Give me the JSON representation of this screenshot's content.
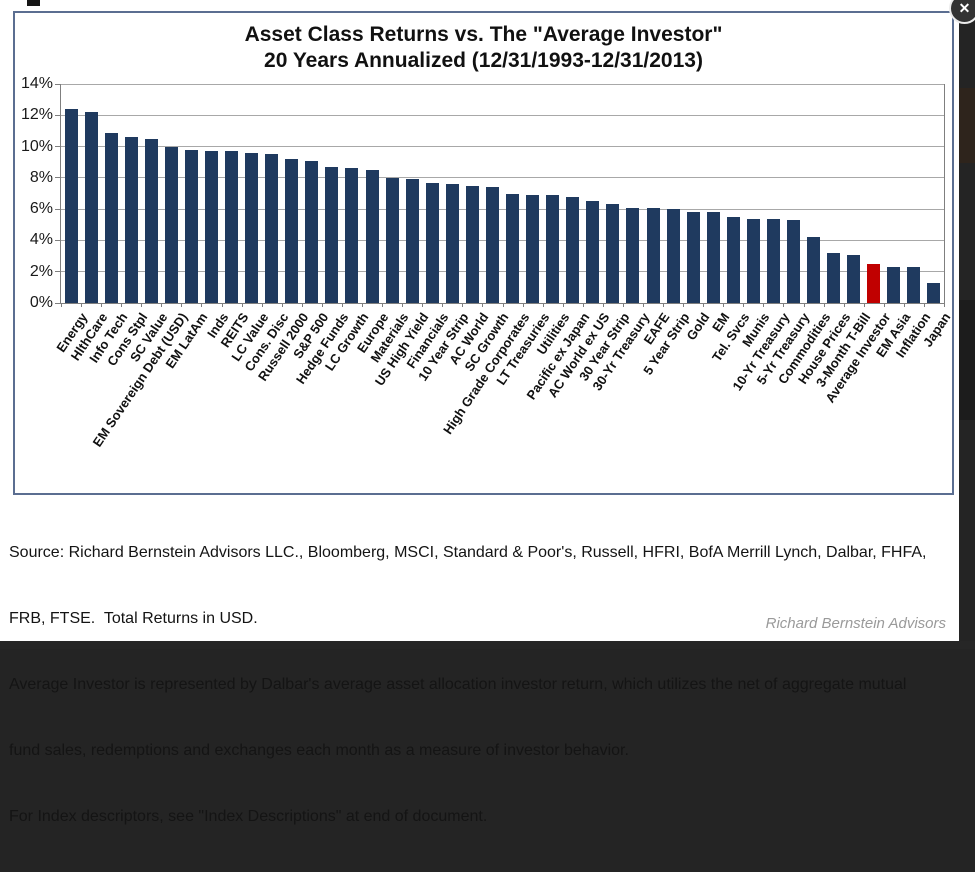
{
  "window": {
    "close_glyph": "✕",
    "credit": "Richard Bernstein Advisors"
  },
  "chart_data": {
    "type": "bar",
    "title_line1": "Asset Class Returns vs. The \"Average Investor\"",
    "title_line2": "20 Years Annualized (12/31/1993-12/31/2013)",
    "categories": [
      "Energy",
      "HlthCare",
      "Info Tech",
      "Cons Stpl",
      "SC Value",
      "EM Sovereign Debt (USD)",
      "EM LatAm",
      "Inds",
      "REITS",
      "LC Value",
      "Cons. Disc",
      "Russell 2000",
      "S&P 500",
      "Hedge Funds",
      "LC Growth",
      "Europe",
      "Materials",
      "US High Yield",
      "Financials",
      "10 Year Strip",
      "AC World",
      "SC Growth",
      "High Grade Corporates",
      "LT Treasuries",
      "Utilities",
      "Pacific ex Japan",
      "AC World ex US",
      "30 Year Strip",
      "30-Yr Treasury",
      "EAFE",
      "5 Year Strip",
      "Gold",
      "EM",
      "Tel. Svcs",
      "Munis",
      "10-Yr Treasury",
      "5-Yr Treasury",
      "Commodities",
      "House Prices",
      "3-Month T-Bill",
      "Average Investor",
      "EM Asia",
      "Inflation",
      "Japan"
    ],
    "values": [
      12.4,
      12.2,
      10.9,
      10.6,
      10.5,
      10.0,
      9.8,
      9.7,
      9.7,
      9.6,
      9.5,
      9.2,
      9.1,
      8.7,
      8.6,
      8.5,
      8.0,
      7.9,
      7.7,
      7.6,
      7.5,
      7.4,
      7.0,
      6.9,
      6.9,
      6.8,
      6.5,
      6.3,
      6.1,
      6.1,
      6.0,
      5.8,
      5.8,
      5.5,
      5.4,
      5.4,
      5.3,
      4.2,
      3.2,
      3.1,
      2.5,
      2.3,
      2.3,
      1.3
    ],
    "highlight_category": "Average Investor",
    "bar_color": "#1f3a5f",
    "highlight_color": "#c00000",
    "ylim": [
      0,
      14
    ],
    "ytick_step": 2,
    "ytick_labels": [
      "0%",
      "2%",
      "4%",
      "6%",
      "8%",
      "10%",
      "12%",
      "14%"
    ],
    "grid": true,
    "legend": "none"
  },
  "footnotes": {
    "lines": [
      "Source: Richard Bernstein Advisors LLC., Bloomberg, MSCI, Standard & Poor's, Russell, HFRI, BofA Merrill Lynch, Dalbar, FHFA,",
      "FRB, FTSE.  Total Returns in USD.",
      "Average Investor is represented by Dalbar's average asset allocation investor return, which utilizes the net of aggregate mutual",
      "fund sales, redemptions and exchanges each month as a measure of investor behavior.",
      "For Index descriptors, see \"Index Descriptions\" at end of document."
    ]
  }
}
